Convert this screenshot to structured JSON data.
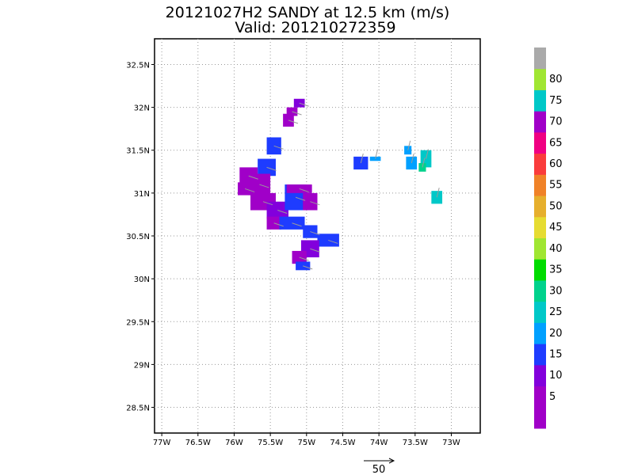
{
  "chart_data": {
    "type": "heatmap",
    "title": "20121027H2 SANDY at 12.5 km (m/s)",
    "subtitle": "Valid: 201210272359",
    "xlim": [
      -77.1,
      -72.6
    ],
    "ylim": [
      28.2,
      32.8
    ],
    "x_ticks": [
      {
        "value": -77.0,
        "label": "77W"
      },
      {
        "value": -76.5,
        "label": "76.5W"
      },
      {
        "value": -76.0,
        "label": "76W"
      },
      {
        "value": -75.5,
        "label": "75.5W"
      },
      {
        "value": -75.0,
        "label": "75W"
      },
      {
        "value": -74.5,
        "label": "74.5W"
      },
      {
        "value": -74.0,
        "label": "74W"
      },
      {
        "value": -73.5,
        "label": "73.5W"
      },
      {
        "value": -73.0,
        "label": "73W"
      }
    ],
    "y_ticks": [
      {
        "value": 28.5,
        "label": "28.5N"
      },
      {
        "value": 29.0,
        "label": "29N"
      },
      {
        "value": 29.5,
        "label": "29.5N"
      },
      {
        "value": 30.0,
        "label": "30N"
      },
      {
        "value": 30.5,
        "label": "30.5N"
      },
      {
        "value": 31.0,
        "label": "31N"
      },
      {
        "value": 31.5,
        "label": "31.5N"
      },
      {
        "value": 32.0,
        "label": "32N"
      },
      {
        "value": 32.5,
        "label": "32.5N"
      }
    ],
    "grid": true,
    "colorbar": {
      "bins": [
        {
          "label": "",
          "color": "#a000c8"
        },
        {
          "label": "5",
          "color": "#a000c8"
        },
        {
          "label": "10",
          "color": "#8200dc"
        },
        {
          "label": "15",
          "color": "#1e3cff"
        },
        {
          "label": "20",
          "color": "#00a0ff"
        },
        {
          "label": "25",
          "color": "#00c8c8"
        },
        {
          "label": "30",
          "color": "#00d28c"
        },
        {
          "label": "35",
          "color": "#00dc00"
        },
        {
          "label": "40",
          "color": "#a0e632"
        },
        {
          "label": "45",
          "color": "#e6dc32"
        },
        {
          "label": "50",
          "color": "#e6af2d"
        },
        {
          "label": "55",
          "color": "#f08228"
        },
        {
          "label": "60",
          "color": "#fa3c3c"
        },
        {
          "label": "65",
          "color": "#f00082"
        },
        {
          "label": "70",
          "color": "#a000c8"
        },
        {
          "label": "75",
          "color": "#00c8c8"
        },
        {
          "label": "80",
          "color": "#a0e632"
        },
        {
          "label": "",
          "color": "#aaaaaa"
        }
      ]
    },
    "wind_cells": [
      {
        "lon": -75.1,
        "lat": 32.05,
        "w": 0.15,
        "h": 0.1,
        "color": "#8200dc"
      },
      {
        "lon": -75.2,
        "lat": 31.95,
        "w": 0.15,
        "h": 0.1,
        "color": "#a000c8"
      },
      {
        "lon": -75.25,
        "lat": 31.85,
        "w": 0.15,
        "h": 0.15,
        "color": "#a000c8"
      },
      {
        "lon": -75.45,
        "lat": 31.55,
        "w": 0.2,
        "h": 0.2,
        "color": "#1e3cff"
      },
      {
        "lon": -75.55,
        "lat": 31.3,
        "w": 0.25,
        "h": 0.2,
        "color": "#1e3cff"
      },
      {
        "lon": -75.65,
        "lat": 31.1,
        "w": 0.3,
        "h": 0.25,
        "color": "#a000c8"
      },
      {
        "lon": -75.8,
        "lat": 31.2,
        "w": 0.25,
        "h": 0.2,
        "color": "#a000c8"
      },
      {
        "lon": -75.85,
        "lat": 31.05,
        "w": 0.2,
        "h": 0.15,
        "color": "#a000c8"
      },
      {
        "lon": -75.6,
        "lat": 30.9,
        "w": 0.35,
        "h": 0.2,
        "color": "#a000c8"
      },
      {
        "lon": -75.4,
        "lat": 30.8,
        "w": 0.3,
        "h": 0.2,
        "color": "#8200dc"
      },
      {
        "lon": -75.45,
        "lat": 30.65,
        "w": 0.2,
        "h": 0.15,
        "color": "#a000c8"
      },
      {
        "lon": -75.15,
        "lat": 30.95,
        "w": 0.3,
        "h": 0.3,
        "color": "#1e3cff"
      },
      {
        "lon": -75.1,
        "lat": 31.05,
        "w": 0.35,
        "h": 0.1,
        "color": "#a000c8"
      },
      {
        "lon": -74.95,
        "lat": 30.9,
        "w": 0.2,
        "h": 0.2,
        "color": "#a000c8"
      },
      {
        "lon": -75.2,
        "lat": 30.65,
        "w": 0.35,
        "h": 0.15,
        "color": "#1e3cff"
      },
      {
        "lon": -74.95,
        "lat": 30.55,
        "w": 0.2,
        "h": 0.15,
        "color": "#1e3cff"
      },
      {
        "lon": -74.7,
        "lat": 30.45,
        "w": 0.3,
        "h": 0.15,
        "color": "#1e3cff"
      },
      {
        "lon": -74.95,
        "lat": 30.35,
        "w": 0.25,
        "h": 0.2,
        "color": "#8200dc"
      },
      {
        "lon": -75.1,
        "lat": 30.25,
        "w": 0.2,
        "h": 0.15,
        "color": "#a000c8"
      },
      {
        "lon": -75.05,
        "lat": 30.15,
        "w": 0.2,
        "h": 0.1,
        "color": "#1e3cff"
      },
      {
        "lon": -74.25,
        "lat": 31.35,
        "w": 0.2,
        "h": 0.15,
        "color": "#1e3cff"
      },
      {
        "lon": -74.05,
        "lat": 31.4,
        "w": 0.15,
        "h": 0.05,
        "color": "#00a0ff"
      },
      {
        "lon": -73.6,
        "lat": 31.5,
        "w": 0.1,
        "h": 0.1,
        "color": "#00a0ff"
      },
      {
        "lon": -73.55,
        "lat": 31.35,
        "w": 0.15,
        "h": 0.15,
        "color": "#00a0ff"
      },
      {
        "lon": -73.35,
        "lat": 31.4,
        "w": 0.15,
        "h": 0.2,
        "color": "#00c8c8"
      },
      {
        "lon": -73.4,
        "lat": 31.3,
        "w": 0.1,
        "h": 0.1,
        "color": "#00d28c"
      },
      {
        "lon": -73.2,
        "lat": 30.95,
        "w": 0.15,
        "h": 0.15,
        "color": "#00c8c8"
      }
    ],
    "reference_vector": {
      "value": 50,
      "label": "50"
    }
  }
}
